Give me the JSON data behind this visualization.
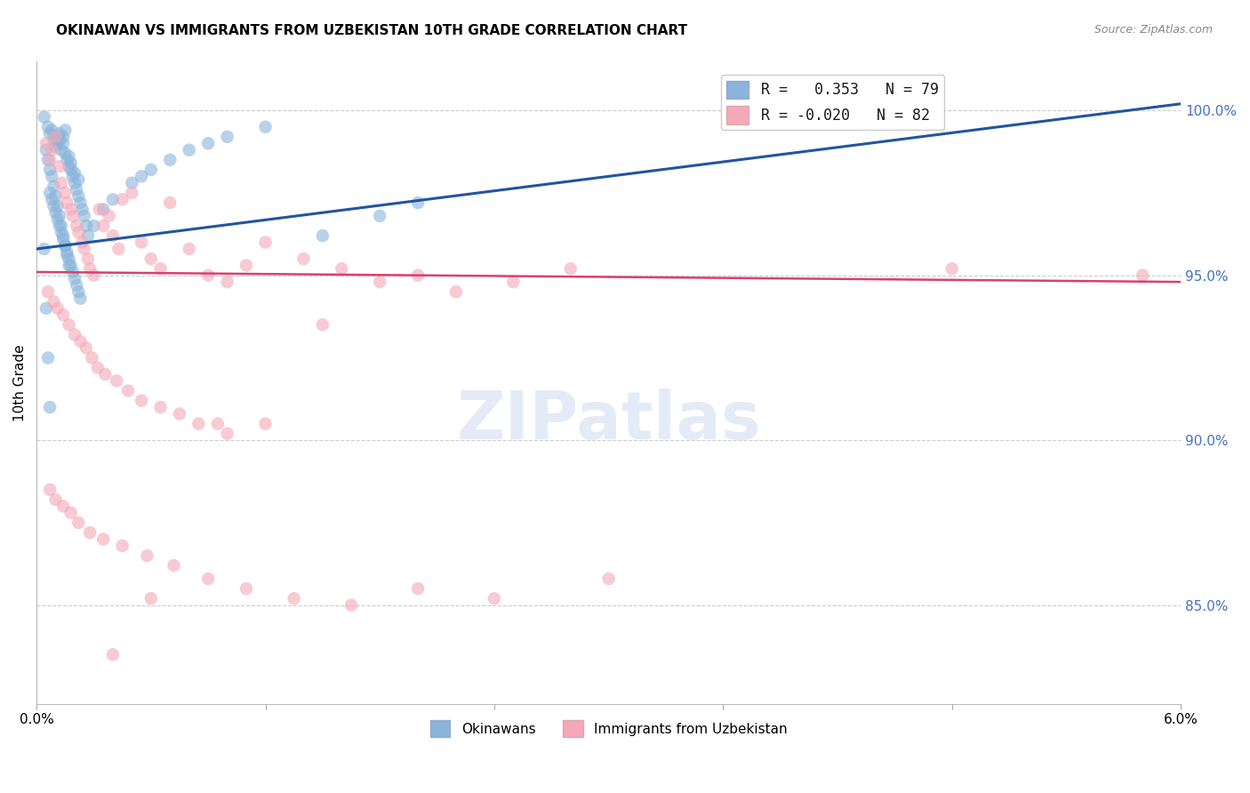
{
  "title": "OKINAWAN VS IMMIGRANTS FROM UZBEKISTAN 10TH GRADE CORRELATION CHART",
  "source": "Source: ZipAtlas.com",
  "ylabel": "10th Grade",
  "xmin": 0.0,
  "xmax": 6.0,
  "ymin": 82.0,
  "ymax": 101.5,
  "yticks": [
    85.0,
    90.0,
    95.0,
    100.0
  ],
  "ytick_labels": [
    "85.0%",
    "90.0%",
    "95.0%",
    "100.0%"
  ],
  "xticks": [
    0.0,
    1.2,
    2.4,
    3.6,
    4.8,
    6.0
  ],
  "xtick_labels": [
    "0.0%",
    "",
    "",
    "",
    "",
    "6.0%"
  ],
  "r_blue": 0.353,
  "n_blue": 79,
  "r_pink": -0.02,
  "n_pink": 82,
  "blue_color": "#8ab4db",
  "pink_color": "#f4a8b8",
  "line_blue": "#2255a0",
  "line_pink": "#d94070",
  "blue_line_x": [
    0.0,
    6.0
  ],
  "blue_line_y": [
    95.8,
    100.2
  ],
  "pink_line_x": [
    0.0,
    6.0
  ],
  "pink_line_y": [
    95.1,
    94.8
  ],
  "blue_x": [
    0.04,
    0.06,
    0.07,
    0.08,
    0.09,
    0.1,
    0.1,
    0.11,
    0.12,
    0.12,
    0.13,
    0.14,
    0.14,
    0.15,
    0.15,
    0.16,
    0.17,
    0.17,
    0.18,
    0.18,
    0.19,
    0.2,
    0.2,
    0.21,
    0.22,
    0.22,
    0.23,
    0.24,
    0.25,
    0.26,
    0.07,
    0.08,
    0.09,
    0.1,
    0.11,
    0.12,
    0.13,
    0.14,
    0.15,
    0.16,
    0.17,
    0.18,
    0.19,
    0.2,
    0.21,
    0.22,
    0.23,
    0.05,
    0.06,
    0.07,
    0.08,
    0.09,
    0.1,
    0.11,
    0.12,
    0.13,
    0.14,
    0.15,
    0.16,
    0.17,
    0.27,
    0.3,
    0.35,
    0.4,
    0.5,
    0.55,
    0.6,
    0.7,
    0.8,
    0.9,
    1.0,
    1.2,
    1.5,
    1.8,
    2.0,
    0.04,
    0.05,
    0.06,
    0.07
  ],
  "blue_y": [
    99.8,
    99.5,
    99.3,
    99.4,
    99.1,
    99.2,
    98.9,
    99.0,
    99.3,
    99.1,
    98.8,
    99.0,
    99.2,
    98.7,
    99.4,
    98.5,
    98.3,
    98.6,
    98.2,
    98.4,
    98.0,
    97.8,
    98.1,
    97.6,
    97.4,
    97.9,
    97.2,
    97.0,
    96.8,
    96.5,
    97.5,
    97.3,
    97.1,
    96.9,
    96.7,
    96.5,
    96.3,
    96.1,
    95.9,
    95.7,
    95.5,
    95.3,
    95.1,
    94.9,
    94.7,
    94.5,
    94.3,
    98.8,
    98.5,
    98.2,
    98.0,
    97.7,
    97.4,
    97.1,
    96.8,
    96.5,
    96.2,
    95.9,
    95.6,
    95.3,
    96.2,
    96.5,
    97.0,
    97.3,
    97.8,
    98.0,
    98.2,
    98.5,
    98.8,
    99.0,
    99.2,
    99.5,
    96.2,
    96.8,
    97.2,
    95.8,
    94.0,
    92.5,
    91.0
  ],
  "pink_x": [
    0.05,
    0.07,
    0.08,
    0.1,
    0.12,
    0.13,
    0.15,
    0.16,
    0.18,
    0.19,
    0.21,
    0.22,
    0.24,
    0.25,
    0.27,
    0.28,
    0.3,
    0.33,
    0.35,
    0.38,
    0.4,
    0.43,
    0.45,
    0.5,
    0.55,
    0.6,
    0.65,
    0.7,
    0.8,
    0.9,
    1.0,
    1.1,
    1.2,
    1.4,
    1.6,
    1.8,
    2.0,
    2.2,
    2.5,
    2.8,
    0.06,
    0.09,
    0.11,
    0.14,
    0.17,
    0.2,
    0.23,
    0.26,
    0.29,
    0.32,
    0.36,
    0.42,
    0.48,
    0.55,
    0.65,
    0.75,
    0.85,
    1.0,
    1.2,
    1.5,
    0.07,
    0.1,
    0.14,
    0.18,
    0.22,
    0.28,
    0.35,
    0.45,
    0.58,
    0.72,
    0.9,
    1.1,
    1.35,
    1.65,
    2.0,
    2.4,
    3.0,
    4.8,
    5.8,
    0.4,
    0.6,
    0.95
  ],
  "pink_y": [
    99.0,
    98.5,
    98.8,
    99.2,
    98.3,
    97.8,
    97.5,
    97.2,
    97.0,
    96.8,
    96.5,
    96.3,
    96.0,
    95.8,
    95.5,
    95.2,
    95.0,
    97.0,
    96.5,
    96.8,
    96.2,
    95.8,
    97.3,
    97.5,
    96.0,
    95.5,
    95.2,
    97.2,
    95.8,
    95.0,
    94.8,
    95.3,
    96.0,
    95.5,
    95.2,
    94.8,
    95.0,
    94.5,
    94.8,
    95.2,
    94.5,
    94.2,
    94.0,
    93.8,
    93.5,
    93.2,
    93.0,
    92.8,
    92.5,
    92.2,
    92.0,
    91.8,
    91.5,
    91.2,
    91.0,
    90.8,
    90.5,
    90.2,
    90.5,
    93.5,
    88.5,
    88.2,
    88.0,
    87.8,
    87.5,
    87.2,
    87.0,
    86.8,
    86.5,
    86.2,
    85.8,
    85.5,
    85.2,
    85.0,
    85.5,
    85.2,
    85.8,
    95.2,
    95.0,
    83.5,
    85.2,
    90.5
  ]
}
